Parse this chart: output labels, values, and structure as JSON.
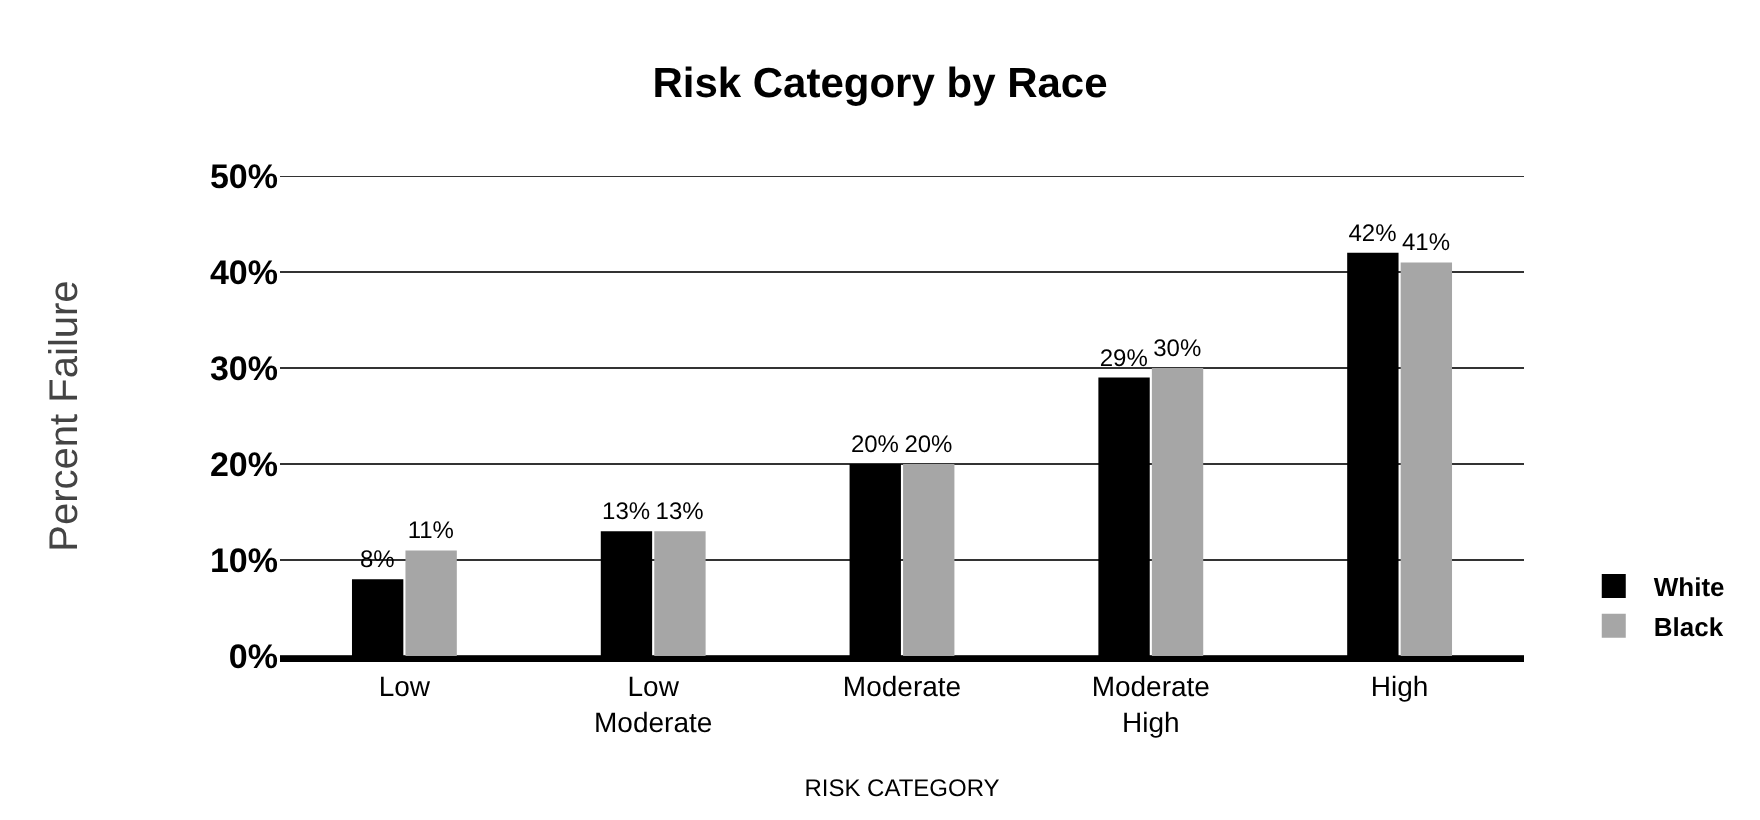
{
  "chart_data": {
    "type": "bar",
    "title": "Risk Category by Race",
    "xlabel": "RISK CATEGORY",
    "ylabel": "Percent Failure",
    "categories": [
      "Low",
      "Low Moderate",
      "Moderate",
      "Moderate High",
      "High"
    ],
    "series": [
      {
        "name": "White",
        "color": "#000000",
        "values": [
          8,
          13,
          20,
          29,
          42
        ],
        "value_labels": [
          "8%",
          "13%",
          "20%",
          "29%",
          "42%"
        ]
      },
      {
        "name": "Black",
        "color": "#a6a6a6",
        "values": [
          11,
          13,
          20,
          30,
          41
        ],
        "value_labels": [
          "11%",
          "13%",
          "20%",
          "30%",
          "41%"
        ]
      }
    ],
    "ylim": [
      0,
      50
    ],
    "yticks": [
      {
        "value": 0,
        "label": "0%"
      },
      {
        "value": 10,
        "label": "10%"
      },
      {
        "value": 20,
        "label": "20%"
      },
      {
        "value": 30,
        "label": "30%"
      },
      {
        "value": 40,
        "label": "40%"
      },
      {
        "value": 50,
        "label": "50%"
      }
    ],
    "grid": "y",
    "legend": "bottom right"
  }
}
